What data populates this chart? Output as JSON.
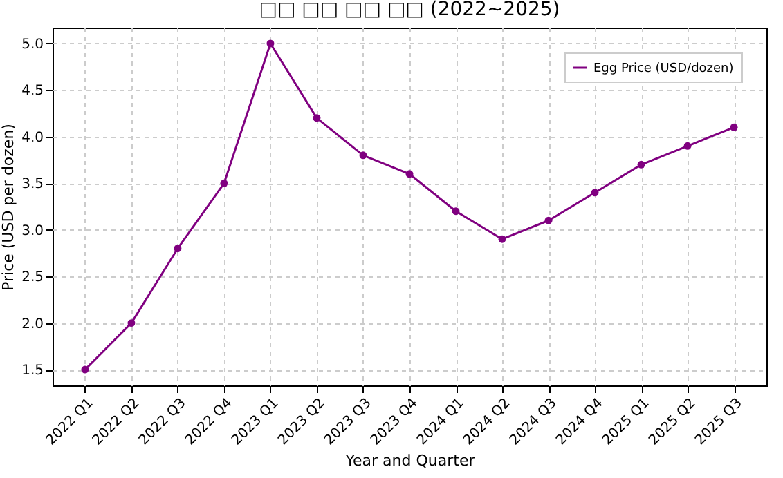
{
  "chart_data": {
    "type": "line",
    "title": "□□ □□ □□ □□ (2022~2025)",
    "xlabel": "Year and Quarter",
    "ylabel": "Price (USD per dozen)",
    "categories": [
      "2022 Q1",
      "2022 Q2",
      "2022 Q3",
      "2022 Q4",
      "2023 Q1",
      "2023 Q2",
      "2023 Q3",
      "2023 Q4",
      "2024 Q1",
      "2024 Q2",
      "2024 Q3",
      "2024 Q4",
      "2025 Q1",
      "2025 Q2",
      "2025 Q3"
    ],
    "series": [
      {
        "name": "Egg Price (USD/dozen)",
        "color": "#800080",
        "values": [
          1.5,
          2.0,
          2.8,
          3.5,
          5.0,
          4.2,
          3.8,
          3.6,
          3.2,
          2.9,
          3.1,
          3.4,
          3.7,
          3.9,
          4.1
        ]
      }
    ],
    "ylim": [
      1.33,
      5.17
    ],
    "yticks": [
      1.5,
      {
        "value": 2,
        "label": "2.0"
      },
      2.5,
      {
        "value": 3,
        "label": "3.0"
      },
      3.5,
      {
        "value": 4,
        "label": "4.0"
      },
      4.5,
      {
        "value": 5,
        "label": "5.0"
      }
    ],
    "grid": true,
    "legend": "top right",
    "marker": "circle",
    "line_style": "solid"
  }
}
